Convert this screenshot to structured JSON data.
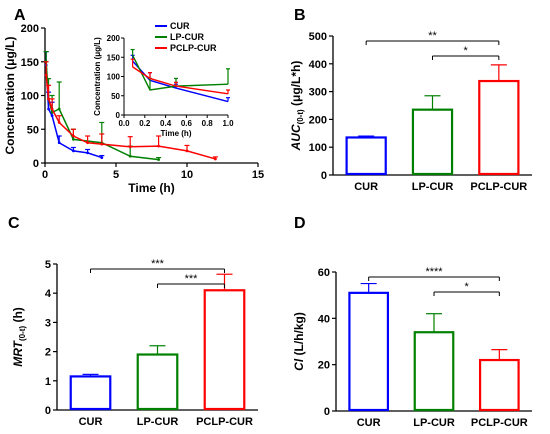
{
  "chart_data": [
    {
      "panel": "A",
      "type": "line",
      "xlabel": "Time (h)",
      "ylabel": "Concentration (μg/L)",
      "xlim": [
        0,
        15
      ],
      "ylim": [
        0,
        200
      ],
      "xticks": [
        "0",
        "5",
        "10",
        "15"
      ],
      "yticks": [
        "0",
        "50",
        "100",
        "150",
        "200"
      ],
      "series": [
        {
          "name": "CUR",
          "color": "#0000ff",
          "x": [
            0.083,
            0.25,
            0.5,
            1,
            2,
            3,
            4
          ],
          "y": [
            145,
            80,
            70,
            30,
            18,
            15,
            8
          ],
          "err": [
            20,
            25,
            20,
            10,
            5,
            5,
            3
          ]
        },
        {
          "name": "LP-CUR",
          "color": "#008000",
          "x": [
            0.083,
            0.25,
            0.5,
            1,
            2,
            4,
            6,
            8
          ],
          "y": [
            150,
            95,
            75,
            80,
            35,
            30,
            10,
            5
          ],
          "err": [
            15,
            30,
            25,
            40,
            15,
            30,
            15,
            3
          ]
        },
        {
          "name": "PCLP-CUR",
          "color": "#ff0000",
          "x": [
            0.083,
            0.25,
            0.5,
            1,
            2,
            3,
            4,
            6,
            8,
            10,
            12
          ],
          "y": [
            130,
            95,
            80,
            60,
            40,
            30,
            28,
            24,
            25,
            18,
            6
          ],
          "err": [
            20,
            20,
            15,
            10,
            10,
            10,
            15,
            15,
            15,
            8,
            3
          ]
        }
      ],
      "inset": {
        "xlabel": "Time (h)",
        "ylabel": "Concentration (μg/L)",
        "xlim": [
          0,
          1
        ],
        "ylim": [
          0,
          200
        ],
        "xticks": [
          "0.0",
          "0.2",
          "0.4",
          "0.6",
          "0.8",
          "1.0"
        ],
        "yticks": [
          "0",
          "50",
          "100",
          "150",
          "200"
        ],
        "series": [
          {
            "name": "CUR",
            "x": [
              0.083,
              0.25,
              0.5,
              1.0
            ],
            "y": [
              140,
              90,
              70,
              35
            ],
            "err": [
              15,
              20,
              10,
              10
            ]
          },
          {
            "name": "LP-CUR",
            "x": [
              0.083,
              0.25,
              0.5,
              1.0
            ],
            "y": [
              155,
              65,
              75,
              80
            ],
            "err": [
              15,
              30,
              20,
              40
            ]
          },
          {
            "name": "PCLP-CUR",
            "x": [
              0.083,
              0.25,
              0.5,
              1.0
            ],
            "y": [
              125,
              95,
              75,
              55
            ],
            "err": [
              20,
              15,
              10,
              10
            ]
          }
        ]
      }
    },
    {
      "panel": "B",
      "type": "bar",
      "ylabel": "AUC(0-t) (μg/L*h)",
      "ylabel_main": "AUC",
      "ylabel_sub": "(0-t)",
      "ylabel_unit": " (μg/L*h)",
      "categories": [
        "CUR",
        "LP-CUR",
        "PCLP-CUR"
      ],
      "colors": [
        "#0000ff",
        "#008000",
        "#ff0000"
      ],
      "values": [
        135,
        235,
        338
      ],
      "errors": [
        5,
        50,
        58
      ],
      "ylim": [
        0,
        500
      ],
      "yticks": [
        "0",
        "100",
        "200",
        "300",
        "400",
        "500"
      ],
      "brackets": [
        {
          "from": 0,
          "to": 2,
          "label": "**"
        },
        {
          "from": 1,
          "to": 2,
          "label": "*"
        }
      ]
    },
    {
      "panel": "C",
      "type": "bar",
      "ylabel": "MRT(0-t) (h)",
      "ylabel_main": "MRT",
      "ylabel_sub": "(0-t)",
      "ylabel_unit": " (h)",
      "categories": [
        "CUR",
        "LP-CUR",
        "PCLP-CUR"
      ],
      "colors": [
        "#0000ff",
        "#008000",
        "#ff0000"
      ],
      "values": [
        1.15,
        1.9,
        4.1
      ],
      "errors": [
        0.07,
        0.3,
        0.55
      ],
      "ylim": [
        0,
        5
      ],
      "yticks": [
        "0",
        "1",
        "2",
        "3",
        "4",
        "5"
      ],
      "brackets": [
        {
          "from": 0,
          "to": 2,
          "label": "***"
        },
        {
          "from": 1,
          "to": 2,
          "label": "***"
        }
      ]
    },
    {
      "panel": "D",
      "type": "bar",
      "ylabel": "Cl (L/h/kg)",
      "ylabel_main": "Cl",
      "ylabel_sub": "",
      "ylabel_unit": " (L/h/kg)",
      "categories": [
        "CUR",
        "LP-CUR",
        "PCLP-CUR"
      ],
      "colors": [
        "#0000ff",
        "#008000",
        "#ff0000"
      ],
      "values": [
        51,
        34,
        22
      ],
      "errors": [
        4,
        8,
        4.5
      ],
      "ylim": [
        0,
        60
      ],
      "yticks": [
        "0",
        "20",
        "40",
        "60"
      ],
      "brackets": [
        {
          "from": 0,
          "to": 2,
          "label": "****"
        },
        {
          "from": 1,
          "to": 2,
          "label": "*"
        }
      ]
    }
  ]
}
